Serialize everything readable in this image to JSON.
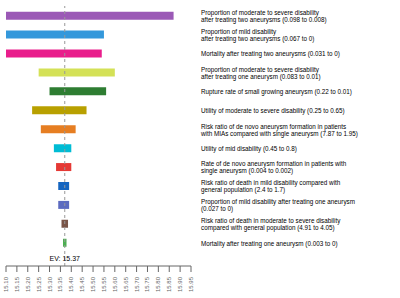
{
  "chart_data": {
    "type": "bar",
    "orientation": "horizontal",
    "grid": false,
    "categories": [
      "Proportion of moderate to severe disability\nafter treating two aneurysms (0.098 to 0.008)",
      "Proportion of mild disability\nafter treating two aneurysms (0.067 to 0)",
      "Mortality after treating two aneurysms (0.031 to 0)",
      "Proportion of moderate to severe disability\nafter treating one aneurysm (0.083 to 0.01)",
      "Rupture rate of small growing aneurysm (0.22 to 0.01)",
      "Utility of moderate to severe disability (0.25 to 0.65)",
      "Risk ratio of de novo aneurysm formation in patients\nwith MIAs compared with single aneurysm (7.87 to 1.95)",
      "Utility of mid disability (0.45 to 0.8)",
      "Rate of de novo aneurysm formation in patients with\nsingle aneurysm (0.004 to 0.002)",
      "Risk ratio of death in mild disability compared with\ngeneral population (2.4 to 1.7)",
      "Proportion of mild disability after treating one aneurysm\n(0.027 to 0)",
      "Risk ratio of death in moderate to severe disability\ncompared with general population (4.91 to 4.05)",
      "Mortality after treating one aneurysm (0.003 to 0)"
    ],
    "values": [
      [
        15.1,
        15.87
      ],
      [
        15.1,
        15.55
      ],
      [
        15.1,
        15.54
      ],
      [
        15.25,
        15.6
      ],
      [
        15.3,
        15.56
      ],
      [
        15.22,
        15.47
      ],
      [
        15.26,
        15.42
      ],
      [
        15.32,
        15.4
      ],
      [
        15.33,
        15.4
      ],
      [
        15.34,
        15.39
      ],
      [
        15.34,
        15.39
      ],
      [
        15.355,
        15.385
      ],
      [
        15.362,
        15.378
      ]
    ],
    "colors": [
      "#9b59b6",
      "#3498db",
      "#e91e8c",
      "#d4e157",
      "#2e7d32",
      "#b8a000",
      "#e67e22",
      "#00bcd4",
      "#e53935",
      "#1565c0",
      "#5c6bc0",
      "#795548",
      "#4caf50"
    ],
    "xlim": [
      15.1,
      15.95
    ],
    "xticks": [
      {
        "value": 15.1,
        "label": "15.10"
      },
      15.15,
      {
        "value": 15.2,
        "label": "15.20"
      },
      15.25,
      {
        "value": 15.3,
        "label": "15.30"
      },
      15.35,
      {
        "value": 15.4,
        "label": "15.40"
      },
      15.45,
      {
        "value": 15.5,
        "label": "15.50"
      },
      15.55,
      {
        "value": 15.6,
        "label": "15.60"
      },
      15.65,
      {
        "value": 15.7,
        "label": "15.70"
      },
      15.75,
      {
        "value": 15.8,
        "label": "15.80"
      },
      15.85,
      {
        "value": 15.9,
        "label": "15.90"
      },
      15.95
    ],
    "annotations": [
      {
        "text": "EV: 15.37",
        "x": 15.37,
        "color": "#999999"
      }
    ]
  }
}
